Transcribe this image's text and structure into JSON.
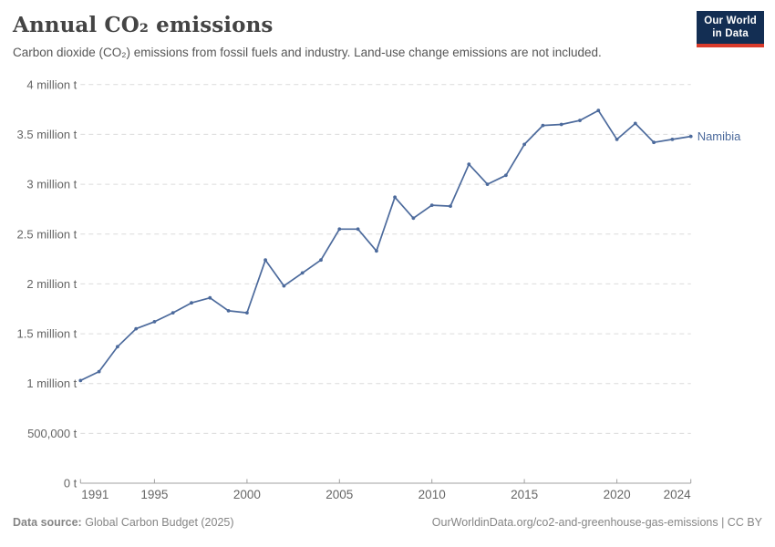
{
  "header": {
    "title": "Annual CO₂ emissions",
    "subtitle": "Carbon dioxide (CO₂) emissions from fossil fuels and industry. Land-use change emissions are not included.",
    "logo": {
      "line1": "Our World",
      "line2": "in Data"
    }
  },
  "chart_data": {
    "type": "line",
    "title": "Annual CO₂ emissions",
    "unit": "t",
    "x": [
      1991,
      1992,
      1993,
      1994,
      1995,
      1996,
      1997,
      1998,
      1999,
      2000,
      2001,
      2002,
      2003,
      2004,
      2005,
      2006,
      2007,
      2008,
      2009,
      2010,
      2011,
      2012,
      2013,
      2014,
      2015,
      2016,
      2017,
      2018,
      2019,
      2020,
      2021,
      2022,
      2023,
      2024
    ],
    "series": [
      {
        "name": "Namibia",
        "values": [
          1030000,
          1120000,
          1370000,
          1550000,
          1620000,
          1710000,
          1810000,
          1860000,
          1730000,
          1710000,
          2240000,
          1980000,
          2110000,
          2240000,
          2550000,
          2550000,
          2330000,
          2870000,
          2660000,
          2790000,
          2780000,
          3200000,
          3000000,
          3090000,
          3400000,
          3590000,
          3600000,
          3640000,
          3740000,
          3450000,
          3610000,
          3420000,
          3450000,
          3480000
        ]
      }
    ],
    "ylim": [
      0,
      4000000
    ],
    "y_ticks": [
      {
        "value": 0,
        "label": "0 t"
      },
      {
        "value": 500000,
        "label": "500,000 t"
      },
      {
        "value": 1000000,
        "label": "1 million t"
      },
      {
        "value": 1500000,
        "label": "1.5 million t"
      },
      {
        "value": 2000000,
        "label": "2 million t"
      },
      {
        "value": 2500000,
        "label": "2.5 million t"
      },
      {
        "value": 3000000,
        "label": "3 million t"
      },
      {
        "value": 3500000,
        "label": "3.5 million t"
      },
      {
        "value": 4000000,
        "label": "4 million t"
      }
    ],
    "x_ticks": [
      1991,
      1995,
      2000,
      2005,
      2010,
      2015,
      2020,
      2024
    ],
    "grid": "horizontal dashed",
    "legend": "line-end entity label"
  },
  "footer": {
    "source_label": "Data source:",
    "source_value": "Global Carbon Budget (2025)",
    "link": "OurWorldinData.org/co2-and-greenhouse-gas-emissions | CC BY"
  },
  "colors": {
    "line": "#4C6A9C",
    "entity_label": "#4C6A9C",
    "grid": "#dcdcdc",
    "axis": "#a0a0a0",
    "logo_bg": "#132E53",
    "logo_accent": "#DA3B2B"
  }
}
